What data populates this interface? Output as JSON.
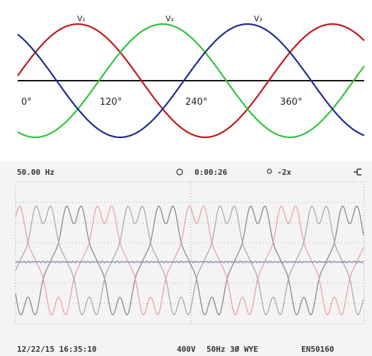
{
  "diagram": {
    "phase_labels": [
      "V₁",
      "V₂",
      "V₃"
    ],
    "angle_labels": [
      "0°",
      "120°",
      "240°",
      "360°"
    ]
  },
  "scope": {
    "frequency": "50.00 Hz",
    "timer": "0:00:26",
    "zoom": "-2x",
    "date_time": "12/22/15  16:35:10",
    "voltage": "400V",
    "config": "50Hz 3Ø WYE",
    "standard": "EN50160"
  }
}
